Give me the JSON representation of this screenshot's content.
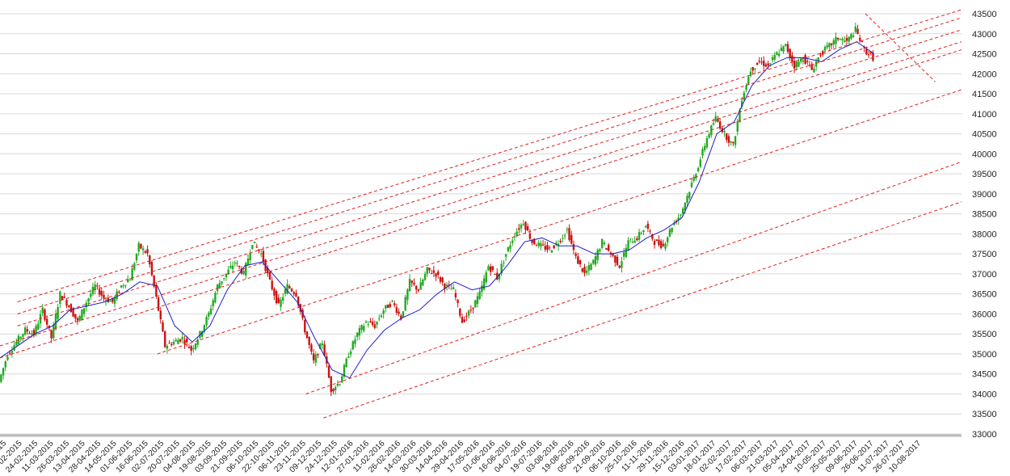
{
  "chart_data": {
    "type": "candlestick",
    "title": "",
    "xlabel": "",
    "ylabel": "",
    "ylim": [
      33000,
      43500
    ],
    "y_ticks": [
      33000,
      33500,
      34000,
      34500,
      35000,
      35500,
      36000,
      36500,
      37000,
      37500,
      38000,
      38500,
      39000,
      39500,
      40000,
      40500,
      41000,
      41500,
      42000,
      42500,
      43000,
      43500
    ],
    "x_tick_labels": [
      "26-01-2015",
      "09-02-2015",
      "24-02-2015",
      "11-03-2015",
      "26-03-2015",
      "13-04-2015",
      "28-04-2015",
      "14-05-2015",
      "01-06-2015",
      "16-06-2015",
      "02-07-2015",
      "20-07-2015",
      "04-08-2015",
      "19-08-2015",
      "03-09-2015",
      "21-09-2015",
      "06-10-2015",
      "22-10-2015",
      "06-11-2015",
      "23-11-2015",
      "09-12-2015",
      "24-12-2015",
      "12-01-2016",
      "27-01-2016",
      "11-02-2016",
      "26-02-2016",
      "14-03-2016",
      "30-03-2016",
      "14-04-2016",
      "29-04-2016",
      "17-05-2016",
      "01-06-2016",
      "16-06-2016",
      "04-07-2016",
      "19-07-2016",
      "03-08-2016",
      "19-08-2016",
      "05-09-2016",
      "21-09-2016",
      "06-10-2016",
      "25-10-2016",
      "11-11-2016",
      "29-11-2016",
      "15-12-2016",
      "03-01-2017",
      "18-01-2017",
      "02-02-2017",
      "17-02-2017",
      "06-03-2017",
      "21-03-2017",
      "05-04-2017",
      "24-04-2017",
      "10-05-2017",
      "25-05-2017",
      "09-06-2017",
      "26-06-2017",
      "11-07-2017",
      "26-07-2017",
      "10-08-2017"
    ],
    "grid": true,
    "legend": "none",
    "series": [
      {
        "kind": "close_path",
        "points": [
          [
            0,
            34300
          ],
          [
            1,
            35000
          ],
          [
            2,
            35300
          ],
          [
            3,
            35600
          ],
          [
            4,
            35500
          ],
          [
            5,
            36100
          ],
          [
            6,
            35400
          ],
          [
            7,
            36500
          ],
          [
            8,
            36200
          ],
          [
            9,
            35800
          ],
          [
            10,
            36300
          ],
          [
            11,
            36700
          ],
          [
            12,
            36400
          ],
          [
            13,
            36300
          ],
          [
            14,
            36700
          ],
          [
            15,
            36900
          ],
          [
            16,
            37700
          ],
          [
            17,
            37500
          ],
          [
            18,
            36400
          ],
          [
            19,
            35200
          ],
          [
            20,
            35300
          ],
          [
            21,
            35400
          ],
          [
            22,
            35100
          ],
          [
            23,
            35500
          ],
          [
            24,
            36000
          ],
          [
            25,
            36700
          ],
          [
            26,
            37000
          ],
          [
            27,
            37300
          ],
          [
            28,
            37000
          ],
          [
            29,
            37800
          ],
          [
            30,
            37500
          ],
          [
            31,
            36800
          ],
          [
            32,
            36200
          ],
          [
            33,
            36700
          ],
          [
            34,
            36500
          ],
          [
            35,
            35600
          ],
          [
            36,
            34800
          ],
          [
            37,
            35300
          ],
          [
            38,
            34100
          ],
          [
            39,
            34300
          ],
          [
            40,
            35000
          ],
          [
            41,
            35500
          ],
          [
            42,
            35800
          ],
          [
            43,
            35700
          ],
          [
            44,
            36100
          ],
          [
            45,
            36300
          ],
          [
            46,
            35900
          ],
          [
            47,
            36800
          ],
          [
            48,
            36600
          ],
          [
            49,
            37100
          ],
          [
            50,
            37000
          ],
          [
            51,
            36700
          ],
          [
            52,
            36600
          ],
          [
            53,
            35800
          ],
          [
            54,
            36100
          ],
          [
            55,
            36500
          ],
          [
            56,
            37200
          ],
          [
            57,
            36900
          ],
          [
            58,
            37500
          ],
          [
            59,
            38000
          ],
          [
            60,
            38300
          ],
          [
            61,
            37800
          ],
          [
            62,
            37700
          ],
          [
            63,
            37600
          ],
          [
            64,
            37800
          ],
          [
            65,
            38100
          ],
          [
            66,
            37400
          ],
          [
            67,
            37000
          ],
          [
            68,
            37300
          ],
          [
            69,
            37800
          ],
          [
            70,
            37500
          ],
          [
            71,
            37200
          ],
          [
            72,
            37800
          ],
          [
            73,
            37900
          ],
          [
            74,
            38200
          ],
          [
            75,
            37800
          ],
          [
            76,
            37700
          ],
          [
            77,
            38200
          ],
          [
            78,
            38500
          ],
          [
            79,
            39100
          ],
          [
            80,
            39700
          ],
          [
            81,
            40400
          ],
          [
            82,
            40900
          ],
          [
            83,
            40500
          ],
          [
            84,
            40200
          ],
          [
            85,
            41400
          ],
          [
            86,
            42100
          ],
          [
            87,
            42300
          ],
          [
            88,
            42200
          ],
          [
            89,
            42500
          ],
          [
            90,
            42700
          ],
          [
            91,
            42200
          ],
          [
            92,
            42400
          ],
          [
            93,
            42100
          ],
          [
            94,
            42500
          ],
          [
            95,
            42700
          ],
          [
            96,
            42900
          ],
          [
            97,
            42800
          ],
          [
            98,
            43100
          ],
          [
            99,
            42600
          ],
          [
            100,
            42400
          ]
        ]
      },
      {
        "kind": "moving_average",
        "points": [
          [
            0,
            34900
          ],
          [
            2,
            35200
          ],
          [
            4,
            35500
          ],
          [
            6,
            35700
          ],
          [
            8,
            36100
          ],
          [
            10,
            36200
          ],
          [
            12,
            36300
          ],
          [
            14,
            36500
          ],
          [
            16,
            36800
          ],
          [
            18,
            36700
          ],
          [
            20,
            35700
          ],
          [
            22,
            35300
          ],
          [
            24,
            35700
          ],
          [
            26,
            36600
          ],
          [
            28,
            37200
          ],
          [
            30,
            37300
          ],
          [
            32,
            36800
          ],
          [
            34,
            36300
          ],
          [
            36,
            35400
          ],
          [
            38,
            34600
          ],
          [
            40,
            34400
          ],
          [
            42,
            35100
          ],
          [
            44,
            35600
          ],
          [
            46,
            35900
          ],
          [
            48,
            36100
          ],
          [
            50,
            36500
          ],
          [
            52,
            36800
          ],
          [
            54,
            36600
          ],
          [
            56,
            36700
          ],
          [
            58,
            37200
          ],
          [
            60,
            37800
          ],
          [
            62,
            37900
          ],
          [
            64,
            37700
          ],
          [
            66,
            37700
          ],
          [
            68,
            37500
          ],
          [
            70,
            37500
          ],
          [
            72,
            37600
          ],
          [
            74,
            37900
          ],
          [
            76,
            38100
          ],
          [
            78,
            38400
          ],
          [
            80,
            39300
          ],
          [
            82,
            40500
          ],
          [
            84,
            40800
          ],
          [
            86,
            41700
          ],
          [
            88,
            42200
          ],
          [
            90,
            42400
          ],
          [
            92,
            42400
          ],
          [
            94,
            42300
          ],
          [
            96,
            42600
          ],
          [
            98,
            42800
          ],
          [
            100,
            42500
          ]
        ]
      }
    ],
    "trendlines": [
      {
        "x1": 2,
        "y1": 36300,
        "x2": 110,
        "y2": 43600
      },
      {
        "x1": 2,
        "y1": 36000,
        "x2": 110,
        "y2": 43400
      },
      {
        "x1": 2,
        "y1": 35700,
        "x2": 110,
        "y2": 43100
      },
      {
        "x1": 0,
        "y1": 35200,
        "x2": 110,
        "y2": 42800
      },
      {
        "x1": 0,
        "y1": 34900,
        "x2": 110,
        "y2": 42600
      },
      {
        "x1": 18,
        "y1": 35000,
        "x2": 110,
        "y2": 41600
      },
      {
        "x1": 35,
        "y1": 34000,
        "x2": 110,
        "y2": 39800
      },
      {
        "x1": 37,
        "y1": 33400,
        "x2": 110,
        "y2": 38800
      },
      {
        "x1": 99,
        "y1": 43500,
        "x2": 107,
        "y2": 41800
      }
    ],
    "colors": {
      "up": "#22aa22",
      "down": "#cc1111",
      "average": "#1f1fcc",
      "trend": "#e02020",
      "grid": "#d9d9d9"
    }
  }
}
